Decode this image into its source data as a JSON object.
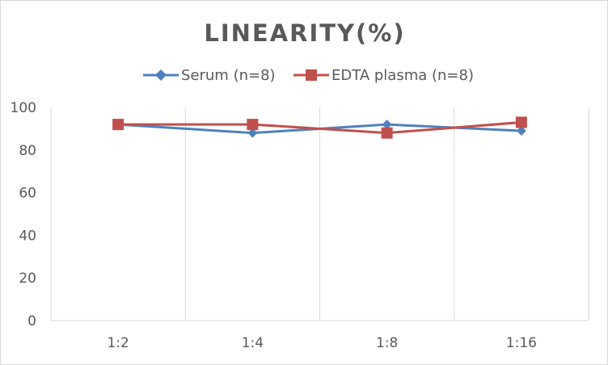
{
  "chart_data": {
    "type": "line",
    "title": "LINEARITY(%)",
    "categories": [
      "1:2",
      "1:4",
      "1:8",
      "1:16"
    ],
    "series": [
      {
        "name": "Serum (n=8)",
        "values": [
          92,
          88,
          92,
          89
        ],
        "color": "#4f81bd",
        "marker": "diamond"
      },
      {
        "name": "EDTA plasma (n=8)",
        "values": [
          92,
          92,
          88,
          93
        ],
        "color": "#c0504d",
        "marker": "square"
      }
    ],
    "ylim": [
      0,
      100
    ],
    "yticks": [
      "0",
      "20",
      "40",
      "60",
      "80",
      "100"
    ],
    "xlabel": "",
    "ylabel": "",
    "legend": "top",
    "grid": "vertical"
  }
}
